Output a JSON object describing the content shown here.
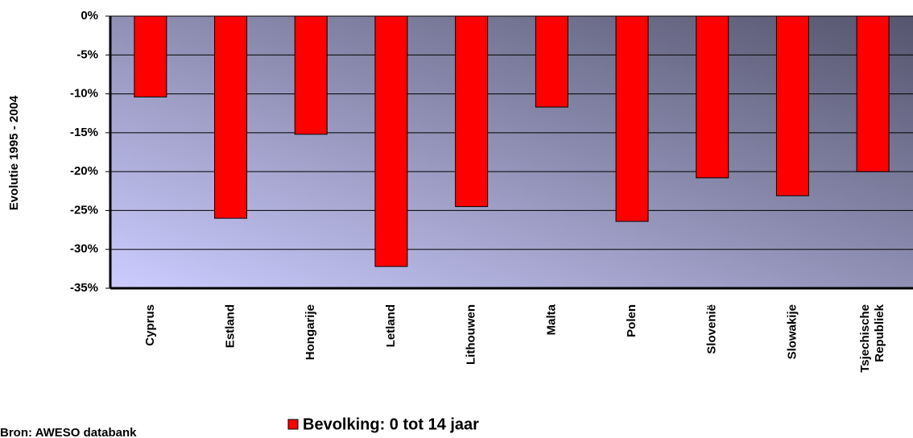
{
  "chart_data": {
    "type": "bar",
    "y_axis_label": "Evolutie 1995 - 2004",
    "categories": [
      "Cyprus",
      "Estland",
      "Hongarije",
      "Letland",
      "Lithouwen",
      "Malta",
      "Polen",
      "Slovenië",
      "Slowakije",
      "Tsjechische Republiek"
    ],
    "series": [
      {
        "name": "Bevolking: 0 tot 14 jaar",
        "color": "#ff0000",
        "values": [
          -10.4,
          -26,
          -15.2,
          -32.2,
          -24.5,
          -11.7,
          -26.4,
          -20.8,
          -23.1,
          -20
        ]
      }
    ],
    "ylim": [
      -35,
      0
    ],
    "yticks": [
      {
        "value": 0,
        "label": "0%"
      },
      {
        "value": -5,
        "label": "-5%"
      },
      {
        "value": -10,
        "label": "-10%"
      },
      {
        "value": -15,
        "label": "-15%"
      },
      {
        "value": -20,
        "label": "-20%"
      },
      {
        "value": -25,
        "label": "-25%"
      },
      {
        "value": -30,
        "label": "-30%"
      },
      {
        "value": -35,
        "label": "-35%"
      }
    ],
    "grid": true,
    "source": "Bron: AWESO databank"
  }
}
